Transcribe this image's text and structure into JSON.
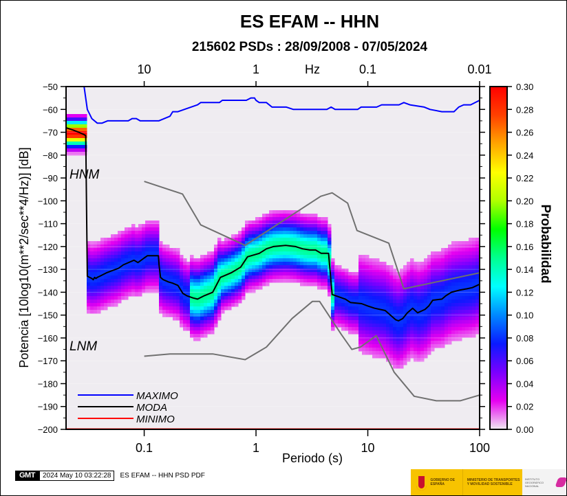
{
  "title": "ES EFAM -- HHN",
  "subtitle": "215602 PSDs : 28/09/2008 - 07/05/2024",
  "footer": {
    "gmt_logo": "GMT",
    "timestamp": "2024 May 10 03:22:28",
    "command": "ES EFAM -- HHN PSD PDF"
  },
  "logos": {
    "gobierno": "Gobierno de España",
    "ministerio": "Ministerio de Transportes y Movilidad Sostenible",
    "ign": "Instituto Geográfico Nacional"
  },
  "chart_data": {
    "type": "heatmap",
    "title": "ES EFAM -- HHN",
    "subtitle": "215602 PSDs : 28/09/2008 - 07/05/2024",
    "xlabel": "Periodo (s)",
    "ylabel": "Potencia [10log10(m**2/sec**4/Hz)] [dB]",
    "x_scale": "log",
    "xlim": [
      0.02,
      100
    ],
    "ylim": [
      -200,
      -50
    ],
    "x_ticks": [
      0.1,
      1,
      10,
      100
    ],
    "x_tick_labels": [
      "0.1",
      "1",
      "10",
      "100"
    ],
    "y_ticks": [
      -50,
      -60,
      -70,
      -80,
      -90,
      -100,
      -110,
      -120,
      -130,
      -140,
      -150,
      -160,
      -170,
      -180,
      -190,
      -200
    ],
    "y_tick_labels": [
      "−50",
      "−60",
      "−70",
      "−80",
      "−90",
      "−100",
      "−110",
      "−120",
      "−130",
      "−140",
      "−150",
      "−160",
      "−170",
      "−180",
      "−190",
      "−200"
    ],
    "top_axis": {
      "label": "Hz",
      "ticks": [
        10,
        1,
        0.1,
        0.01
      ],
      "tick_labels": [
        "10",
        "1",
        "0.1",
        "0.01"
      ]
    },
    "colorbar": {
      "label": "Probabilidad",
      "range": [
        0.0,
        0.3
      ],
      "ticks": [
        "0.30",
        "0.28",
        "0.26",
        "0.24",
        "0.22",
        "0.20",
        "0.18",
        "0.16",
        "0.14",
        "0.12",
        "0.10",
        "0.08",
        "0.06",
        "0.04",
        "0.02",
        "0.00"
      ],
      "colors": [
        "#f0ecf2",
        "#e600f0",
        "#7a00ff",
        "#0a1aff",
        "#0088ff",
        "#00ffff",
        "#00ff90",
        "#00ff00",
        "#b0ff00",
        "#ffff00",
        "#ffa500",
        "#ff4000",
        "#ff0000"
      ]
    },
    "annotations": [
      "HNM",
      "LNM"
    ],
    "legend": {
      "position": "bottom-left",
      "entries": [
        {
          "name": "MAXIMO",
          "color": "#0000ff"
        },
        {
          "name": "MODA",
          "color": "#000000"
        },
        {
          "name": "MINIMO",
          "color": "#ff0000"
        }
      ]
    },
    "series": [
      {
        "name": "MAXIMO",
        "color": "#0000ff",
        "x": [
          0.02,
          0.029,
          0.031,
          0.034,
          0.038,
          0.042,
          0.047,
          0.067,
          0.072,
          0.078,
          0.085,
          0.092,
          0.1,
          0.135,
          0.17,
          0.18,
          0.2,
          0.3,
          0.32,
          0.47,
          0.5,
          0.82,
          0.9,
          0.97,
          1.0,
          1.07,
          1.24,
          1.39,
          1.87,
          2.16,
          4.3,
          4.7,
          5.1,
          8.1,
          8.7,
          12.0,
          13.3,
          19.0,
          21.0,
          23.8,
          32.0,
          36.0,
          46.0,
          59.0,
          65.0,
          72.0,
          83.0,
          100.0
        ],
        "values": [
          -50,
          -50,
          -60,
          -64,
          -66,
          -66,
          -65,
          -65,
          -65,
          -64,
          -64,
          -65,
          -65,
          -65,
          -63,
          -61,
          -61,
          -58,
          -57,
          -57,
          -56,
          -56,
          -55,
          -55,
          -56,
          -57,
          -57,
          -59,
          -59,
          -60,
          -60,
          -59,
          -60,
          -60,
          -59,
          -59,
          -58,
          -58,
          -57,
          -58,
          -59,
          -60,
          -61,
          -61,
          -59,
          -58,
          -58,
          -56
        ]
      },
      {
        "name": "MODA",
        "color": "#000000",
        "x": [
          0.02,
          0.023,
          0.026,
          0.029,
          0.03,
          0.031,
          0.034,
          0.035,
          0.036,
          0.037,
          0.038,
          0.04,
          0.046,
          0.059,
          0.065,
          0.081,
          0.088,
          0.1,
          0.107,
          0.113,
          0.123,
          0.134,
          0.136,
          0.14,
          0.148,
          0.165,
          0.179,
          0.2,
          0.222,
          0.24,
          0.273,
          0.3,
          0.345,
          0.41,
          0.48,
          0.6,
          0.73,
          0.84,
          1.07,
          1.24,
          1.43,
          1.84,
          2.26,
          2.61,
          3.03,
          3.41,
          3.83,
          4.46,
          4.8,
          6.3,
          7.0,
          8.8,
          10.0,
          11.5,
          14.3,
          17.7,
          18.8,
          20.5,
          22.6,
          25.2,
          27.9,
          32.5,
          35.1,
          38.1,
          46.0,
          50.0,
          56.0,
          67.0,
          77.0,
          86.0,
          100.0
        ],
        "values": [
          -68,
          -69,
          -70,
          -71,
          -71.5,
          -133,
          -134,
          -134.5,
          -133.5,
          -134,
          -133.5,
          -133,
          -131.5,
          -129.5,
          -128,
          -126,
          -127,
          -125,
          -124,
          -124,
          -124,
          -124,
          -128.5,
          -133.5,
          -134.5,
          -135.5,
          -136,
          -137,
          -140.5,
          -141.5,
          -142.5,
          -143,
          -141.5,
          -140,
          -133.5,
          -131.5,
          -129,
          -124.5,
          -123,
          -121,
          -120,
          -119.5,
          -120,
          -121,
          -121.5,
          -121.5,
          -123,
          -123,
          -141,
          -143,
          -144.5,
          -145,
          -146,
          -147,
          -148,
          -152,
          -152.5,
          -151.5,
          -149,
          -147,
          -149,
          -147.5,
          -146,
          -143.5,
          -143,
          -141.5,
          -140,
          -139,
          -138.5,
          -138,
          -136.5
        ]
      },
      {
        "name": "MINIMO",
        "color": "#ff0000",
        "x": [
          0.02,
          100.0
        ],
        "values": [
          -200,
          -200
        ]
      },
      {
        "name": "HNM",
        "color": "#707070",
        "x": [
          0.1,
          0.22,
          0.32,
          0.8,
          3.8,
          4.8,
          6.6,
          8.0,
          15.4,
          21.0,
          100.0
        ],
        "values": [
          -91.5,
          -97,
          -110.5,
          -119.5,
          -98,
          -96.5,
          -101,
          -113,
          -118.5,
          -138.5,
          -131.5
        ]
      },
      {
        "name": "LNM",
        "color": "#707070",
        "x": [
          0.1,
          0.17,
          0.41,
          0.8,
          1.24,
          2.1,
          3.2,
          3.7,
          5.8,
          7.2,
          8.6,
          11.9,
          17.2,
          26.0,
          41.0,
          67.0,
          100.0
        ],
        "values": [
          -168,
          -167,
          -167,
          -169.5,
          -164,
          -151.5,
          -144,
          -144,
          -158.5,
          -165,
          -164,
          -159,
          -175,
          -185.5,
          -187.5,
          -187.5,
          -185
        ]
      }
    ],
    "density_bands_description": "Probability density of PSDs; high probability near MODA curve, peaking >0.26 at short periods around -70 dB"
  }
}
